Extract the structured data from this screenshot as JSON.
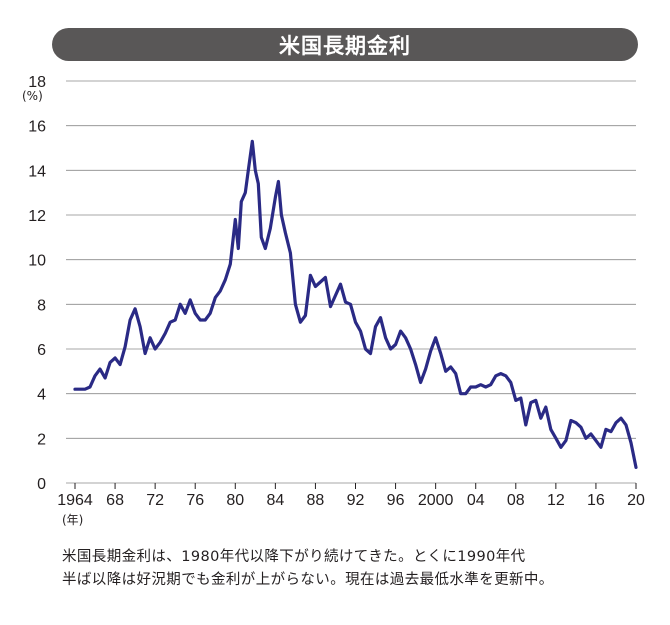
{
  "chart_data": {
    "type": "line",
    "title": "米国長期金利",
    "ylabel": "(%)",
    "xlabel": "(年)",
    "ylim": [
      0,
      18
    ],
    "xlim": [
      1964,
      2020
    ],
    "yticks": [
      "0",
      "2",
      "4",
      "6",
      "8",
      "10",
      "12",
      "14",
      "16",
      "18"
    ],
    "xticks": [
      "1964",
      "68",
      "72",
      "76",
      "80",
      "84",
      "88",
      "92",
      "96",
      "2000",
      "04",
      "08",
      "12",
      "16",
      "20"
    ],
    "grid": "horizontal",
    "line_color": "#2a2a85",
    "series": [
      {
        "x": [
          1964,
          1964.5,
          1965,
          1965.5,
          1966,
          1966.5,
          1967,
          1967.5,
          1968,
          1968.5,
          1969,
          1969.5,
          1970,
          1970.5,
          1971,
          1971.5,
          1972,
          1972.5,
          1973,
          1973.5,
          1974,
          1974.5,
          1975,
          1975.5,
          1976,
          1976.5,
          1977,
          1977.5,
          1978,
          1978.5,
          1979,
          1979.5,
          1980,
          1980.3,
          1980.6,
          1981,
          1981.3,
          1981.7,
          1982,
          1982.3,
          1982.6,
          1983,
          1983.5,
          1984,
          1984.3,
          1984.6,
          1985,
          1985.5,
          1986,
          1986.5,
          1987,
          1987.5,
          1988,
          1988.5,
          1989,
          1989.5,
          1990,
          1990.5,
          1991,
          1991.5,
          1992,
          1992.5,
          1993,
          1993.5,
          1994,
          1994.5,
          1995,
          1995.5,
          1996,
          1996.5,
          1997,
          1997.5,
          1998,
          1998.5,
          1999,
          1999.5,
          2000,
          2000.5,
          2001,
          2001.5,
          2002,
          2002.5,
          2003,
          2003.5,
          2004,
          2004.5,
          2005,
          2005.5,
          2006,
          2006.5,
          2007,
          2007.5,
          2008,
          2008.5,
          2009,
          2009.5,
          2010,
          2010.5,
          2011,
          2011.5,
          2012,
          2012.5,
          2013,
          2013.5,
          2014,
          2014.5,
          2015,
          2015.5,
          2016,
          2016.5,
          2017,
          2017.5,
          2018,
          2018.5,
          2019,
          2019.5,
          2020
        ],
        "y": [
          4.2,
          4.2,
          4.2,
          4.3,
          4.8,
          5.1,
          4.7,
          5.4,
          5.6,
          5.3,
          6.1,
          7.3,
          7.8,
          7.0,
          5.8,
          6.5,
          6.0,
          6.3,
          6.7,
          7.2,
          7.3,
          8.0,
          7.6,
          8.2,
          7.6,
          7.3,
          7.3,
          7.6,
          8.3,
          8.6,
          9.1,
          9.8,
          11.8,
          10.5,
          12.6,
          13.0,
          14.0,
          15.3,
          14.0,
          13.4,
          11.0,
          10.5,
          11.4,
          12.8,
          13.5,
          12.0,
          11.2,
          10.3,
          8.0,
          7.2,
          7.5,
          9.3,
          8.8,
          9.0,
          9.2,
          7.9,
          8.4,
          8.9,
          8.1,
          8.0,
          7.2,
          6.8,
          6.0,
          5.8,
          7.0,
          7.4,
          6.5,
          6.0,
          6.2,
          6.8,
          6.5,
          6.0,
          5.3,
          4.5,
          5.1,
          5.9,
          6.5,
          5.8,
          5.0,
          5.2,
          4.9,
          4.0,
          4.0,
          4.3,
          4.3,
          4.4,
          4.3,
          4.4,
          4.8,
          4.9,
          4.8,
          4.5,
          3.7,
          3.8,
          2.6,
          3.6,
          3.7,
          2.9,
          3.4,
          2.4,
          2.0,
          1.6,
          1.9,
          2.8,
          2.7,
          2.5,
          2.0,
          2.2,
          1.9,
          1.6,
          2.4,
          2.3,
          2.7,
          2.9,
          2.6,
          1.8,
          0.7
        ]
      }
    ]
  },
  "caption": {
    "line1": "米国長期金利は、1980年代以降下がり続けてきた。とくに1990年代",
    "line2": "半ば以降は好況期でも金利が上がらない。現在は過去最低水準を更新中。"
  }
}
